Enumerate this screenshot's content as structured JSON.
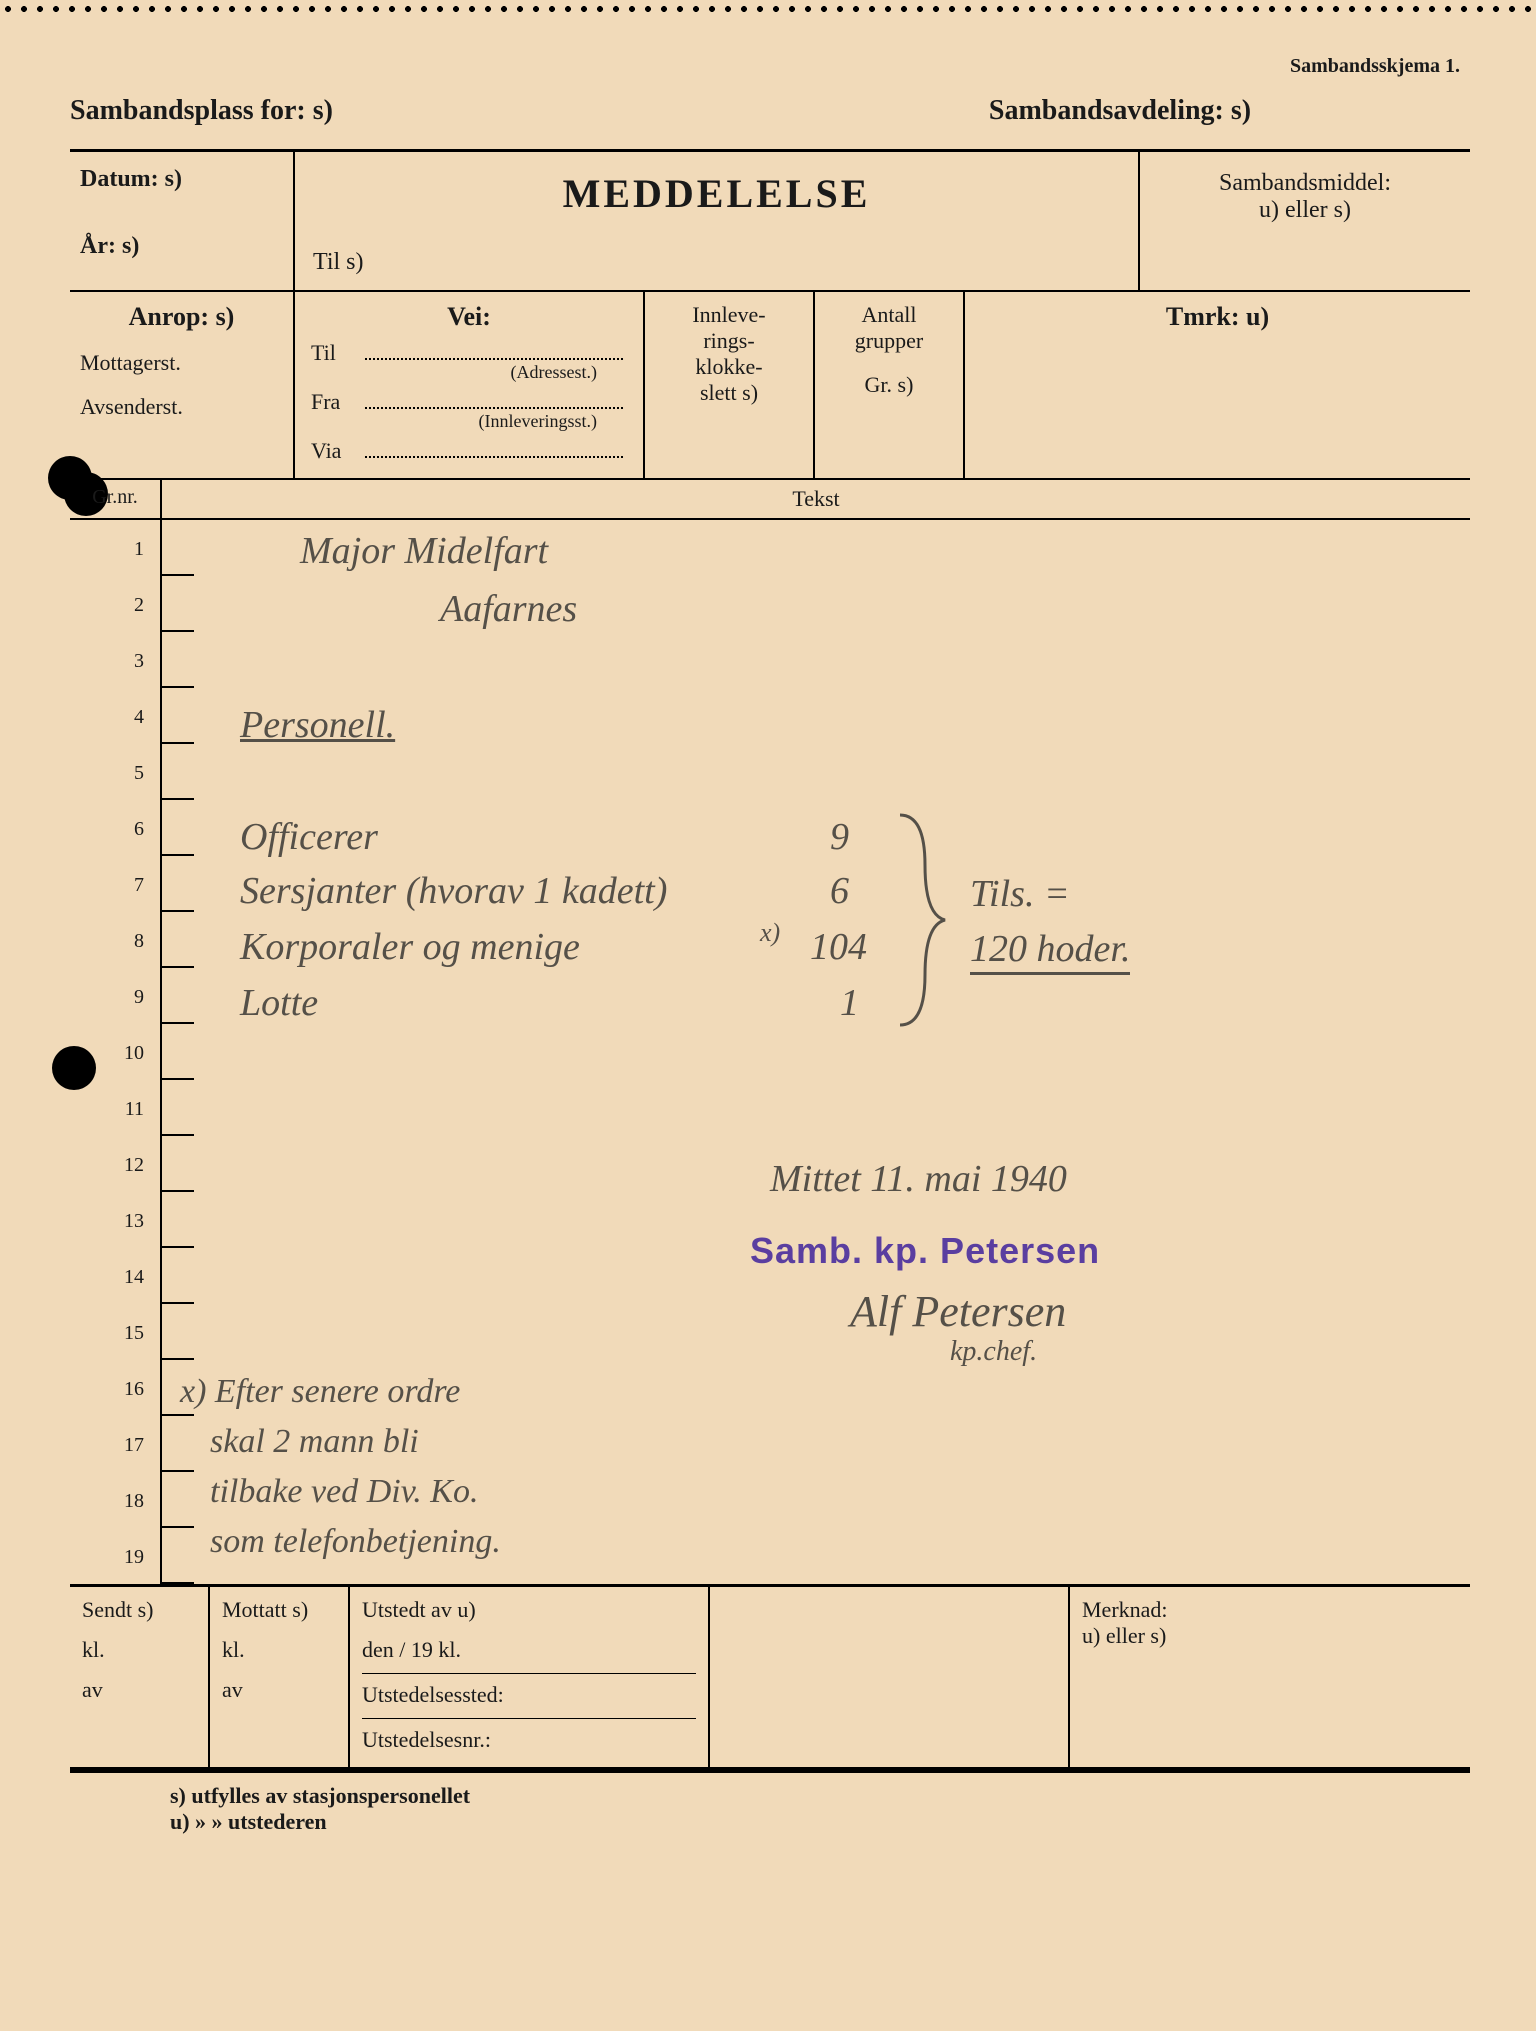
{
  "colors": {
    "paper": "#f1dab9",
    "ink": "#1a1a1a",
    "pencil": "#555048",
    "stamp": "#5a3ea0"
  },
  "form": {
    "top_right": "Sambandsskjema 1.",
    "sambandsplass": "Sambandsplass for: s)",
    "sambandsavdeling": "Sambandsavdeling: s)",
    "datum": "Datum: s)",
    "aar": "År: s)",
    "title": "MEDDELELSE",
    "til": "Til s)",
    "sambandsmiddel1": "Sambandsmiddel:",
    "sambandsmiddel2": "u) eller s)",
    "anrop": "Anrop: s)",
    "mottagerst": "Mottagerst.",
    "avsenderst": "Avsenderst.",
    "vei": "Vei:",
    "vei_til": "Til",
    "vei_til_sub": "(Adressest.)",
    "vei_fra": "Fra",
    "vei_fra_sub": "(Innleveringsst.)",
    "vei_via": "Via",
    "innlev1": "Innleve-",
    "innlev2": "rings-",
    "innlev3": "klokke-",
    "innlev4": "slett s)",
    "antall1": "Antall",
    "antall2": "grupper",
    "antall3": "Gr. s)",
    "tmrk": "Tmrk: u)",
    "grnr": "Gr.nr.",
    "tekst": "Tekst"
  },
  "rows": [
    "1",
    "2",
    "3",
    "4",
    "5",
    "6",
    "7",
    "8",
    "9",
    "10",
    "11",
    "12",
    "13",
    "14",
    "15",
    "16",
    "17",
    "18",
    "19"
  ],
  "handwritten": {
    "addressee": "Major Midelfart",
    "place": "Aafarnes",
    "heading": "Personell.",
    "line_officers": "Officerer",
    "line_officers_n": "9",
    "line_sersj": "Sersjanter (hvorav 1 kadett)",
    "line_sersj_n": "6",
    "line_korp": "Korporaler og menige",
    "line_korp_mark": "x)",
    "line_korp_n": "104",
    "line_lotte": "Lotte",
    "line_lotte_n": "1",
    "tils": "Tils. =",
    "total": "120 hoder.",
    "dateplace": "Mittet 11. mai 1940",
    "stamp": "Samb. kp. Petersen",
    "signature": "Alf Petersen",
    "sig_sub": "kp.chef.",
    "note1": "x) Efter senere ordre",
    "note2": "skal 2 mann bli",
    "note3": "tilbake ved Div. Ko.",
    "note4": "som telefonbetjening."
  },
  "footer": {
    "sendt": "Sendt s)",
    "mottatt": "Mottatt s)",
    "kl": "kl.",
    "av": "av",
    "utstedt": "Utstedt av u)",
    "den": "den        /        19           kl.",
    "utsted_sted": "Utstedelsessted:",
    "utsted_nr": "Utstedelsesnr.:",
    "merknad1": "Merknad:",
    "merknad2": "u) eller s)",
    "note_s": "s) utfylles av stasjonspersonellet",
    "note_u": "u)     »        »   utstederen"
  }
}
